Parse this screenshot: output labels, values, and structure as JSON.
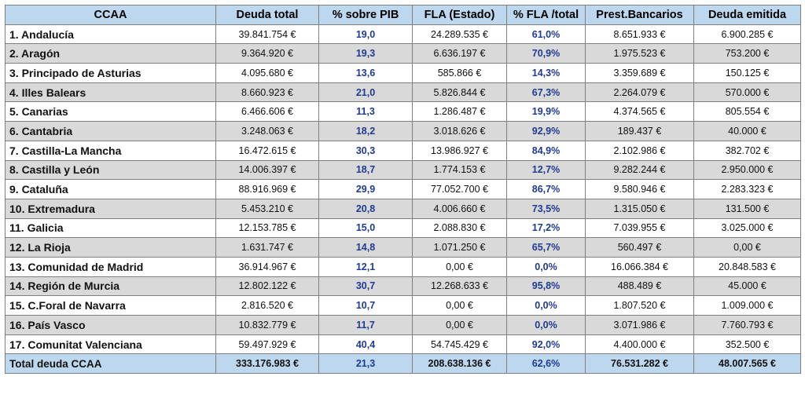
{
  "chart_data": {
    "type": "table",
    "columns": [
      "CCAA",
      "Deuda total",
      "% sobre PIB",
      "FLA (Estado)",
      "% FLA /total",
      "Prest.Bancarios",
      "Deuda emitida"
    ],
    "rows": [
      [
        "1. Andalucía",
        "39.841.754 €",
        "19,0",
        "24.289.535 €",
        "61,0%",
        "8.651.933 €",
        "6.900.285 €"
      ],
      [
        "2. Aragón",
        "9.364.920 €",
        "19,3",
        "6.636.197 €",
        "70,9%",
        "1.975.523 €",
        "753.200 €"
      ],
      [
        "3. Principado de Asturias",
        "4.095.680 €",
        "13,6",
        "585.866 €",
        "14,3%",
        "3.359.689 €",
        "150.125 €"
      ],
      [
        "4. Illes Balears",
        "8.660.923 €",
        "21,0",
        "5.826.844 €",
        "67,3%",
        "2.264.079 €",
        "570.000 €"
      ],
      [
        "5. Canarias",
        "6.466.606 €",
        "11,3",
        "1.286.487 €",
        "19,9%",
        "4.374.565 €",
        "805.554 €"
      ],
      [
        "6. Cantabria",
        "3.248.063 €",
        "18,2",
        "3.018.626 €",
        "92,9%",
        "189.437 €",
        "40.000 €"
      ],
      [
        "7. Castilla-La Mancha",
        "16.472.615 €",
        "30,3",
        "13.986.927 €",
        "84,9%",
        "2.102.986 €",
        "382.702 €"
      ],
      [
        "8. Castilla y León",
        "14.006.397 €",
        "18,7",
        "1.774.153 €",
        "12,7%",
        "9.282.244 €",
        "2.950.000 €"
      ],
      [
        "9. Cataluña",
        "88.916.969 €",
        "29,9",
        "77.052.700 €",
        "86,7%",
        "9.580.946 €",
        "2.283.323 €"
      ],
      [
        "10. Extremadura",
        "5.453.210 €",
        "20,8",
        "4.006.660 €",
        "73,5%",
        "1.315.050 €",
        "131.500 €"
      ],
      [
        "11. Galicia",
        "12.153.785 €",
        "15,0",
        "2.088.830 €",
        "17,2%",
        "7.039.955 €",
        "3.025.000 €"
      ],
      [
        "12. La Rioja",
        "1.631.747 €",
        "14,8",
        "1.071.250 €",
        "65,7%",
        "560.497 €",
        "0,00 €"
      ],
      [
        "13. Comunidad de Madrid",
        "36.914.967 €",
        "12,1",
        "0,00 €",
        "0,0%",
        "16.066.384 €",
        "20.848.583 €"
      ],
      [
        "14. Región de Murcia",
        "12.802.122 €",
        "30,7",
        "12.268.633 €",
        "95,8%",
        "488.489 €",
        "45.000 €"
      ],
      [
        "15. C.Foral de Navarra",
        "2.816.520 €",
        "10,7",
        "0,00 €",
        "0,0%",
        "1.807.520 €",
        "1.009.000 €"
      ],
      [
        "16. País Vasco",
        "10.832.779 €",
        "11,7",
        "0,00 €",
        "0,0%",
        "3.071.986 €",
        "7.760.793 €"
      ],
      [
        "17. Comunitat Valenciana",
        "59.497.929 €",
        "40,4",
        "54.745.429 €",
        "92,0%",
        "4.400.000 €",
        "352.500 €"
      ]
    ],
    "total": [
      "Total deuda CCAA",
      "333.176.983 €",
      "21,3",
      "208.638.136 €",
      "62,6%",
      "76.531.282 €",
      "48.007.565 €"
    ]
  },
  "colors": {
    "header_bg": "#bdd7ee",
    "alt_row_bg": "#d9d9d9",
    "percent_text": "#1f3a93",
    "border": "#7f7f7f"
  }
}
